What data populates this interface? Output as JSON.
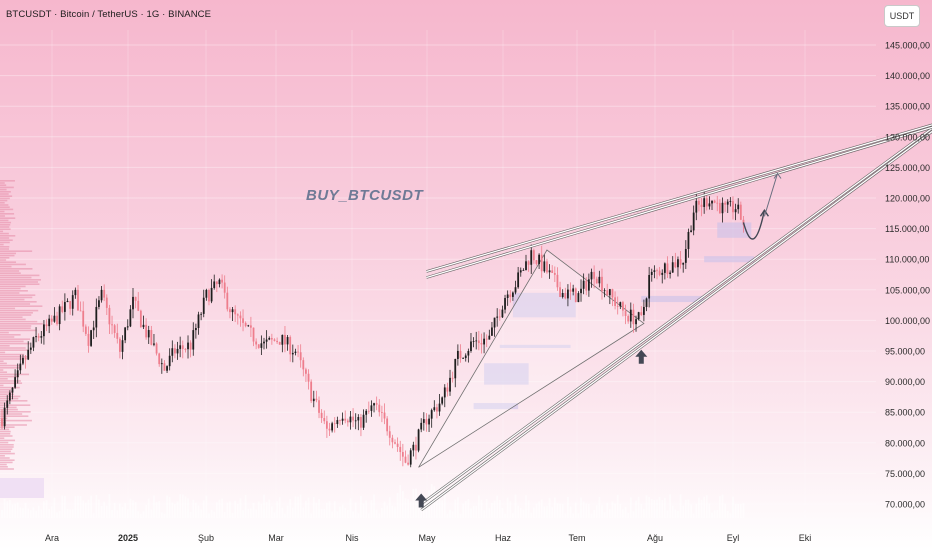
{
  "header": {
    "title": "BTCUSDT · Bitcoin / TetherUS · 1G · BINANCE",
    "currency": "USDT"
  },
  "annotation": "BUY_BTCUSDT",
  "colors": {
    "up": "#1e1e1e",
    "down": "#ee7d8c",
    "lines": "#ffffff",
    "arrows": "#444855"
  },
  "chart_data": {
    "type": "candlestick",
    "title": "BTCUSDT · Bitcoin / TetherUS · 1G · BINANCE",
    "x_ticks": [
      "Ara",
      "2025",
      "Şub",
      "Mar",
      "Nis",
      "May",
      "Haz",
      "Tem",
      "Ağu",
      "Eyl",
      "Eki"
    ],
    "y_ticks": [
      "145.000,00",
      "140.000,00",
      "135.000,00",
      "130.000,00",
      "125.000,00",
      "120.000,00",
      "115.000,00",
      "110.000,00",
      "105.000,00",
      "100.000,00",
      "95.000,00",
      "90.000,00",
      "85.000,00",
      "80.000,00",
      "75.000,00",
      "70.000,00"
    ],
    "ylim": [
      68000,
      146000
    ],
    "grid": true,
    "path_anchors": [
      {
        "t": 0,
        "v": 84000
      },
      {
        "t": 8,
        "v": 93000
      },
      {
        "t": 13,
        "v": 97000
      },
      {
        "t": 20,
        "v": 100000
      },
      {
        "t": 28,
        "v": 104000
      },
      {
        "t": 33,
        "v": 97000
      },
      {
        "t": 38,
        "v": 104000
      },
      {
        "t": 45,
        "v": 95000
      },
      {
        "t": 50,
        "v": 103000
      },
      {
        "t": 55,
        "v": 98000
      },
      {
        "t": 62,
        "v": 92000
      },
      {
        "t": 66,
        "v": 95000
      },
      {
        "t": 72,
        "v": 96000
      },
      {
        "t": 78,
        "v": 104000
      },
      {
        "t": 83,
        "v": 106000
      },
      {
        "t": 88,
        "v": 101000
      },
      {
        "t": 94,
        "v": 98000
      },
      {
        "t": 100,
        "v": 96000
      },
      {
        "t": 106,
        "v": 97000
      },
      {
        "t": 112,
        "v": 95000
      },
      {
        "t": 118,
        "v": 88000
      },
      {
        "t": 124,
        "v": 82000
      },
      {
        "t": 130,
        "v": 85000
      },
      {
        "t": 136,
        "v": 83000
      },
      {
        "t": 142,
        "v": 86000
      },
      {
        "t": 148,
        "v": 82000
      },
      {
        "t": 154,
        "v": 77000
      },
      {
        "t": 157,
        "v": 79000
      },
      {
        "t": 162,
        "v": 84000
      },
      {
        "t": 168,
        "v": 87000
      },
      {
        "t": 174,
        "v": 94000
      },
      {
        "t": 180,
        "v": 96500
      },
      {
        "t": 186,
        "v": 97000
      },
      {
        "t": 192,
        "v": 104000
      },
      {
        "t": 196,
        "v": 106000
      },
      {
        "t": 202,
        "v": 111000
      },
      {
        "t": 208,
        "v": 108000
      },
      {
        "t": 214,
        "v": 104500
      },
      {
        "t": 220,
        "v": 104000
      },
      {
        "t": 226,
        "v": 108000
      },
      {
        "t": 232,
        "v": 104000
      },
      {
        "t": 238,
        "v": 101000
      },
      {
        "t": 244,
        "v": 100000
      },
      {
        "t": 247,
        "v": 107000
      },
      {
        "t": 252,
        "v": 108500
      },
      {
        "t": 260,
        "v": 110000
      },
      {
        "t": 264,
        "v": 118000
      },
      {
        "t": 270,
        "v": 120000
      },
      {
        "t": 276,
        "v": 118000
      },
      {
        "t": 280,
        "v": 118500
      },
      {
        "t": 283,
        "v": 116000
      }
    ],
    "projection": [
      {
        "t": 283,
        "v": 116000
      },
      {
        "t": 287,
        "v": 113000
      },
      {
        "t": 291,
        "v": 118000
      }
    ],
    "projection2": [
      {
        "t": 291,
        "v": 117000
      },
      {
        "t": 296,
        "v": 124000
      }
    ],
    "trendlines": [
      {
        "t1": 160,
        "v1": 69000,
        "t2": 357,
        "v2": 131500
      },
      {
        "t1": 160,
        "v1": 70000,
        "t2": 357,
        "v2": 132000
      },
      {
        "t1": 162,
        "v1": 107000,
        "t2": 357,
        "v2": 131800
      },
      {
        "t1": 162,
        "v1": 108000,
        "t2": 357,
        "v2": 132200
      }
    ],
    "pattern": [
      {
        "t": 159,
        "v": 76000
      },
      {
        "t": 208,
        "v": 111500
      },
      {
        "t": 245,
        "v": 99500
      },
      {
        "t": 159,
        "v": 76000
      }
    ],
    "buy_arrows": [
      {
        "t": 160,
        "v": 74000
      },
      {
        "t": 244,
        "v": 97500
      }
    ],
    "zones": [
      {
        "t1": 195,
        "t2": 219,
        "v1": 104500,
        "v2": 100500
      },
      {
        "t1": 190,
        "t2": 217,
        "v1": 96000,
        "v2": 95500
      },
      {
        "t1": 184,
        "t2": 201,
        "v1": 93000,
        "v2": 89500
      },
      {
        "t1": 180,
        "t2": 197,
        "v1": 86500,
        "v2": 85500
      },
      {
        "t1": 273,
        "t2": 286,
        "v1": 116000,
        "v2": 113500
      },
      {
        "t1": 268,
        "t2": 287,
        "v1": 110500,
        "v2": 109500
      },
      {
        "t1": 244,
        "t2": 268,
        "v1": 104000,
        "v2": 103000
      }
    ]
  }
}
